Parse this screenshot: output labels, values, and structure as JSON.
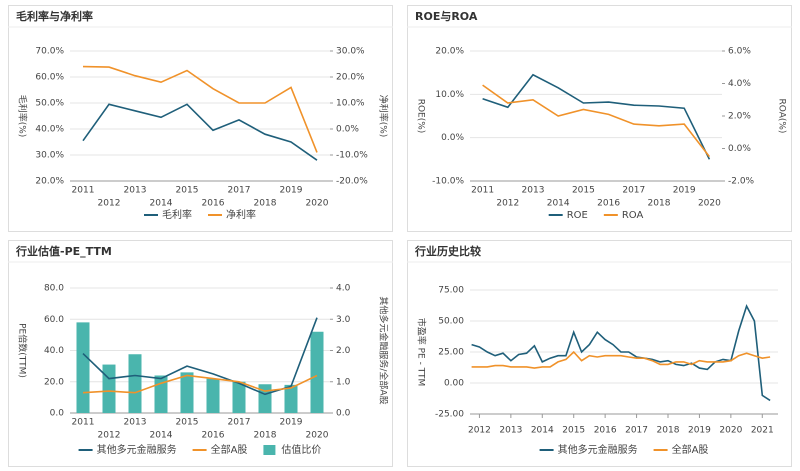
{
  "chart_data": [
    {
      "type": "line",
      "title": "毛利率与净利率",
      "ylabel": "毛利率(%)",
      "y2label": "净利率(%)",
      "categories": [
        "2011",
        "2012",
        "2013",
        "2014",
        "2015",
        "2016",
        "2017",
        "2018",
        "2019",
        "2020"
      ],
      "series": [
        {
          "name": "毛利率",
          "color": "#1f5f7a",
          "type": "line",
          "axis": "y",
          "values": [
            35.5,
            49.5,
            47,
            44.5,
            49.5,
            39.5,
            43.5,
            38,
            35,
            28
          ]
        },
        {
          "name": "净利率",
          "color": "#f0922a",
          "type": "line",
          "axis": "y2",
          "values": [
            24,
            23.8,
            20.5,
            18,
            22.5,
            15.5,
            10,
            10,
            16,
            -9
          ]
        }
      ],
      "ylim": [
        20,
        70
      ],
      "yticks": [
        {
          "value": 20,
          "label": "20.0%"
        },
        {
          "value": 30,
          "label": "30.0%"
        },
        {
          "value": 40,
          "label": "40.0%"
        },
        {
          "value": 50,
          "label": "50.0%"
        },
        {
          "value": 60,
          "label": "60.0%"
        },
        {
          "value": 70,
          "label": "70.0%"
        }
      ],
      "y2lim": [
        -20,
        30
      ],
      "y2ticks": [
        {
          "value": -20,
          "label": "-20.0%"
        },
        {
          "value": -10,
          "label": "-10.0%"
        },
        {
          "value": 0,
          "label": "0.0%"
        },
        {
          "value": 10,
          "label": "10.0%"
        },
        {
          "value": 20,
          "label": "20.0%"
        },
        {
          "value": 30,
          "label": "30.0%"
        }
      ],
      "grid": true,
      "legend": "bottom"
    },
    {
      "type": "line",
      "title": "ROE与ROA",
      "ylabel": "ROE(%)",
      "y2label": "ROA(%)",
      "categories": [
        "2011",
        "2012",
        "2013",
        "2014",
        "2015",
        "2016",
        "2017",
        "2018",
        "2019",
        "2020"
      ],
      "series": [
        {
          "name": "ROE",
          "color": "#1f5f7a",
          "type": "line",
          "axis": "y",
          "values": [
            9,
            7,
            14.5,
            11.5,
            8,
            8.2,
            7.5,
            7.3,
            6.8,
            -5
          ]
        },
        {
          "name": "ROA",
          "color": "#f0922a",
          "type": "line",
          "axis": "y2",
          "values": [
            3.9,
            2.8,
            3.0,
            2.0,
            2.4,
            2.1,
            1.5,
            1.4,
            1.5,
            -0.5
          ]
        }
      ],
      "ylim": [
        -10,
        20
      ],
      "yticks": [
        {
          "value": -10,
          "label": "-10.0%"
        },
        {
          "value": 0,
          "label": "0.0%"
        },
        {
          "value": 10,
          "label": "10.0%"
        },
        {
          "value": 20,
          "label": "20.0%"
        }
      ],
      "y2lim": [
        -2,
        6
      ],
      "y2ticks": [
        {
          "value": -2,
          "label": "-2.0%"
        },
        {
          "value": 0,
          "label": "0.0%"
        },
        {
          "value": 2,
          "label": "2.0%"
        },
        {
          "value": 4,
          "label": "4.0%"
        },
        {
          "value": 6,
          "label": "6.0%"
        }
      ],
      "grid": true,
      "legend": "bottom"
    },
    {
      "type": "bar",
      "title": "行业估值-PE_TTM",
      "ylabel": "PE倍数(TTM)",
      "y2label": "其他多元金融服务/全部A股",
      "categories": [
        "2011",
        "2012",
        "2013",
        "2014",
        "2015",
        "2016",
        "2017",
        "2018",
        "2019",
        "2020"
      ],
      "series": [
        {
          "name": "其他多元金融服务",
          "color": "#1f5f7a",
          "type": "line",
          "axis": "y",
          "values": [
            38,
            22,
            24,
            22,
            30,
            25,
            19,
            12,
            17,
            61
          ]
        },
        {
          "name": "全部A股",
          "color": "#f0922a",
          "type": "line",
          "axis": "y",
          "values": [
            13,
            14,
            13,
            19,
            24,
            22,
            20,
            14,
            16,
            24
          ]
        },
        {
          "name": "估值比价",
          "color": "#4ab5ad",
          "type": "bar",
          "axis": "y2",
          "values": [
            2.9,
            1.55,
            1.88,
            1.2,
            1.3,
            1.1,
            1.0,
            0.92,
            0.9,
            2.6
          ]
        }
      ],
      "ylim": [
        0,
        80
      ],
      "yticks": [
        {
          "value": 0,
          "label": "0.0"
        },
        {
          "value": 20,
          "label": "20.0"
        },
        {
          "value": 40,
          "label": "40.0"
        },
        {
          "value": 60,
          "label": "60.0"
        },
        {
          "value": 80,
          "label": "80.0"
        }
      ],
      "y2lim": [
        0,
        4
      ],
      "y2ticks": [
        {
          "value": 0,
          "label": "0.0"
        },
        {
          "value": 1,
          "label": "1.0"
        },
        {
          "value": 2,
          "label": "2.0"
        },
        {
          "value": 3,
          "label": "3.0"
        },
        {
          "value": 4,
          "label": "4.0"
        }
      ],
      "grid": true,
      "legend": "bottom"
    },
    {
      "type": "line",
      "title": "行业历史比较",
      "ylabel": "市盈率 PE - TTM",
      "x": [
        2011.75,
        2012,
        2012.25,
        2012.5,
        2012.75,
        2013,
        2013.25,
        2013.5,
        2013.75,
        2014,
        2014.25,
        2014.5,
        2014.75,
        2015,
        2015.25,
        2015.5,
        2015.75,
        2016,
        2016.25,
        2016.5,
        2016.75,
        2017,
        2017.25,
        2017.5,
        2017.75,
        2018,
        2018.25,
        2018.5,
        2018.75,
        2019,
        2019.25,
        2019.5,
        2019.75,
        2020,
        2020.25,
        2020.5,
        2020.75,
        2021,
        2021.25
      ],
      "series": [
        {
          "name": "其他多元金融服务",
          "color": "#1f5f7a",
          "type": "line",
          "axis": "y",
          "values": [
            31,
            29,
            25,
            22,
            24,
            18,
            23,
            24,
            30,
            17,
            20,
            22,
            22,
            41,
            25,
            31,
            41,
            35,
            31,
            25,
            25,
            21,
            20,
            19,
            17,
            18,
            15,
            14,
            16,
            12,
            11,
            17,
            19,
            18,
            42,
            62,
            50,
            -10,
            -14
          ]
        },
        {
          "name": "全部A股",
          "color": "#f0922a",
          "type": "line",
          "axis": "y",
          "values": [
            13,
            13,
            13,
            14,
            14,
            13,
            13,
            13,
            12,
            13,
            13,
            17,
            19,
            25,
            18,
            22,
            21,
            22,
            22,
            22,
            21,
            20,
            20,
            18,
            15,
            15,
            17,
            17,
            15,
            18,
            17,
            17,
            17,
            18,
            22,
            24,
            22,
            20,
            21
          ]
        }
      ],
      "xlim": [
        2011.7,
        2021.5
      ],
      "xticks": [
        2012,
        2013,
        2014,
        2015,
        2016,
        2017,
        2018,
        2019,
        2020,
        2021
      ],
      "ylim": [
        -25,
        75
      ],
      "yticks": [
        {
          "value": -25,
          "label": "-25.00"
        },
        {
          "value": 0,
          "label": "0.00"
        },
        {
          "value": 25,
          "label": "25.00"
        },
        {
          "value": 50,
          "label": "50.00"
        },
        {
          "value": 75,
          "label": "75.00"
        }
      ],
      "grid": true,
      "legend": "bottom"
    }
  ]
}
